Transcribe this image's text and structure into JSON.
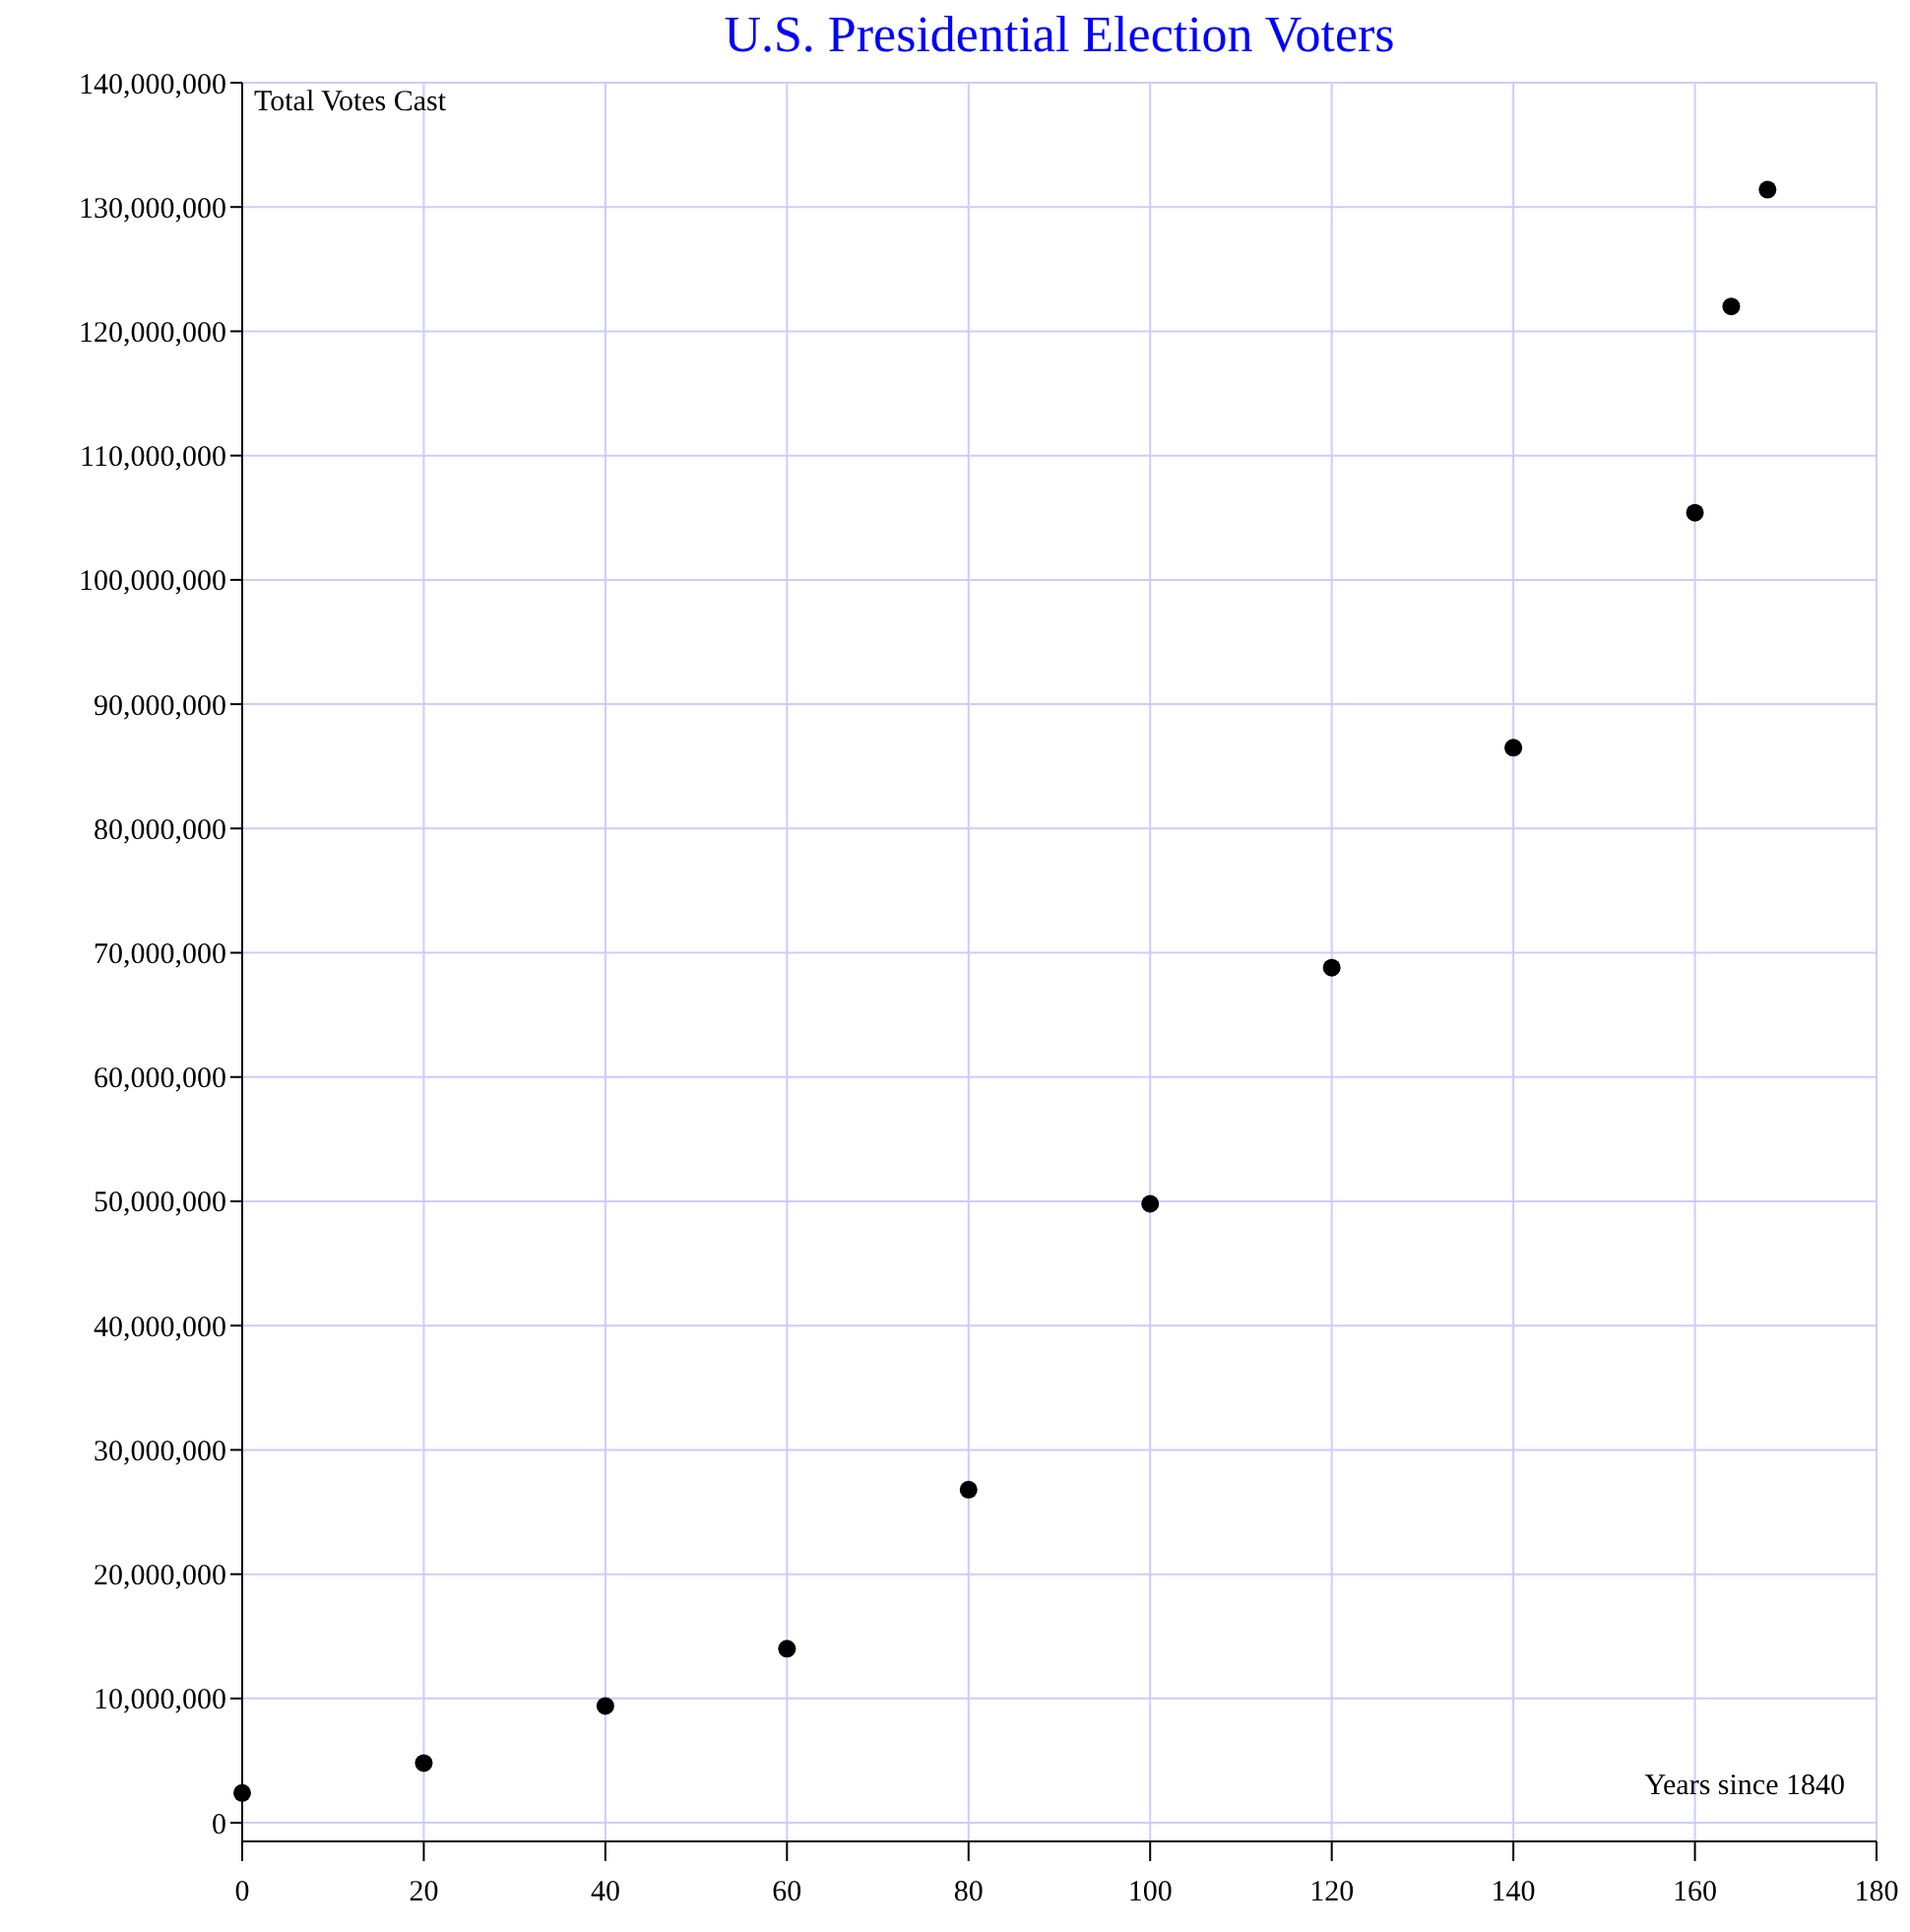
{
  "chart_data": {
    "type": "scatter",
    "title": "U.S. Presidential Election Voters",
    "xlabel": "Years since 1840",
    "ylabel": "Total Votes Cast",
    "x": [
      0,
      20,
      40,
      60,
      80,
      100,
      120,
      140,
      160,
      164,
      168
    ],
    "values": [
      2400000,
      4800000,
      9400000,
      14000000,
      26800000,
      49800000,
      68800000,
      86500000,
      105400000,
      122000000,
      131400000
    ],
    "color": "#000000",
    "marker": "circle",
    "grid": true,
    "xlim": [
      0,
      180
    ],
    "xticks": [
      0,
      20,
      40,
      60,
      80,
      100,
      120,
      140,
      160,
      180
    ],
    "ylim": [
      -1500000,
      140000000
    ],
    "yticks": [
      {
        "value": 0,
        "label": "0"
      },
      {
        "value": 10000000,
        "label": "10,000,000"
      },
      {
        "value": 20000000,
        "label": "20,000,000"
      },
      {
        "value": 30000000,
        "label": "30,000,000"
      },
      {
        "value": 40000000,
        "label": "40,000,000"
      },
      {
        "value": 50000000,
        "label": "50,000,000"
      },
      {
        "value": 60000000,
        "label": "60,000,000"
      },
      {
        "value": 70000000,
        "label": "70,000,000"
      },
      {
        "value": 80000000,
        "label": "80,000,000"
      },
      {
        "value": 90000000,
        "label": "90,000,000"
      },
      {
        "value": 100000000,
        "label": "100,000,000"
      },
      {
        "value": 110000000,
        "label": "110,000,000"
      },
      {
        "value": 120000000,
        "label": "120,000,000"
      },
      {
        "value": 130000000,
        "label": "130,000,000"
      },
      {
        "value": 140000000,
        "label": "140,000,000"
      }
    ]
  }
}
